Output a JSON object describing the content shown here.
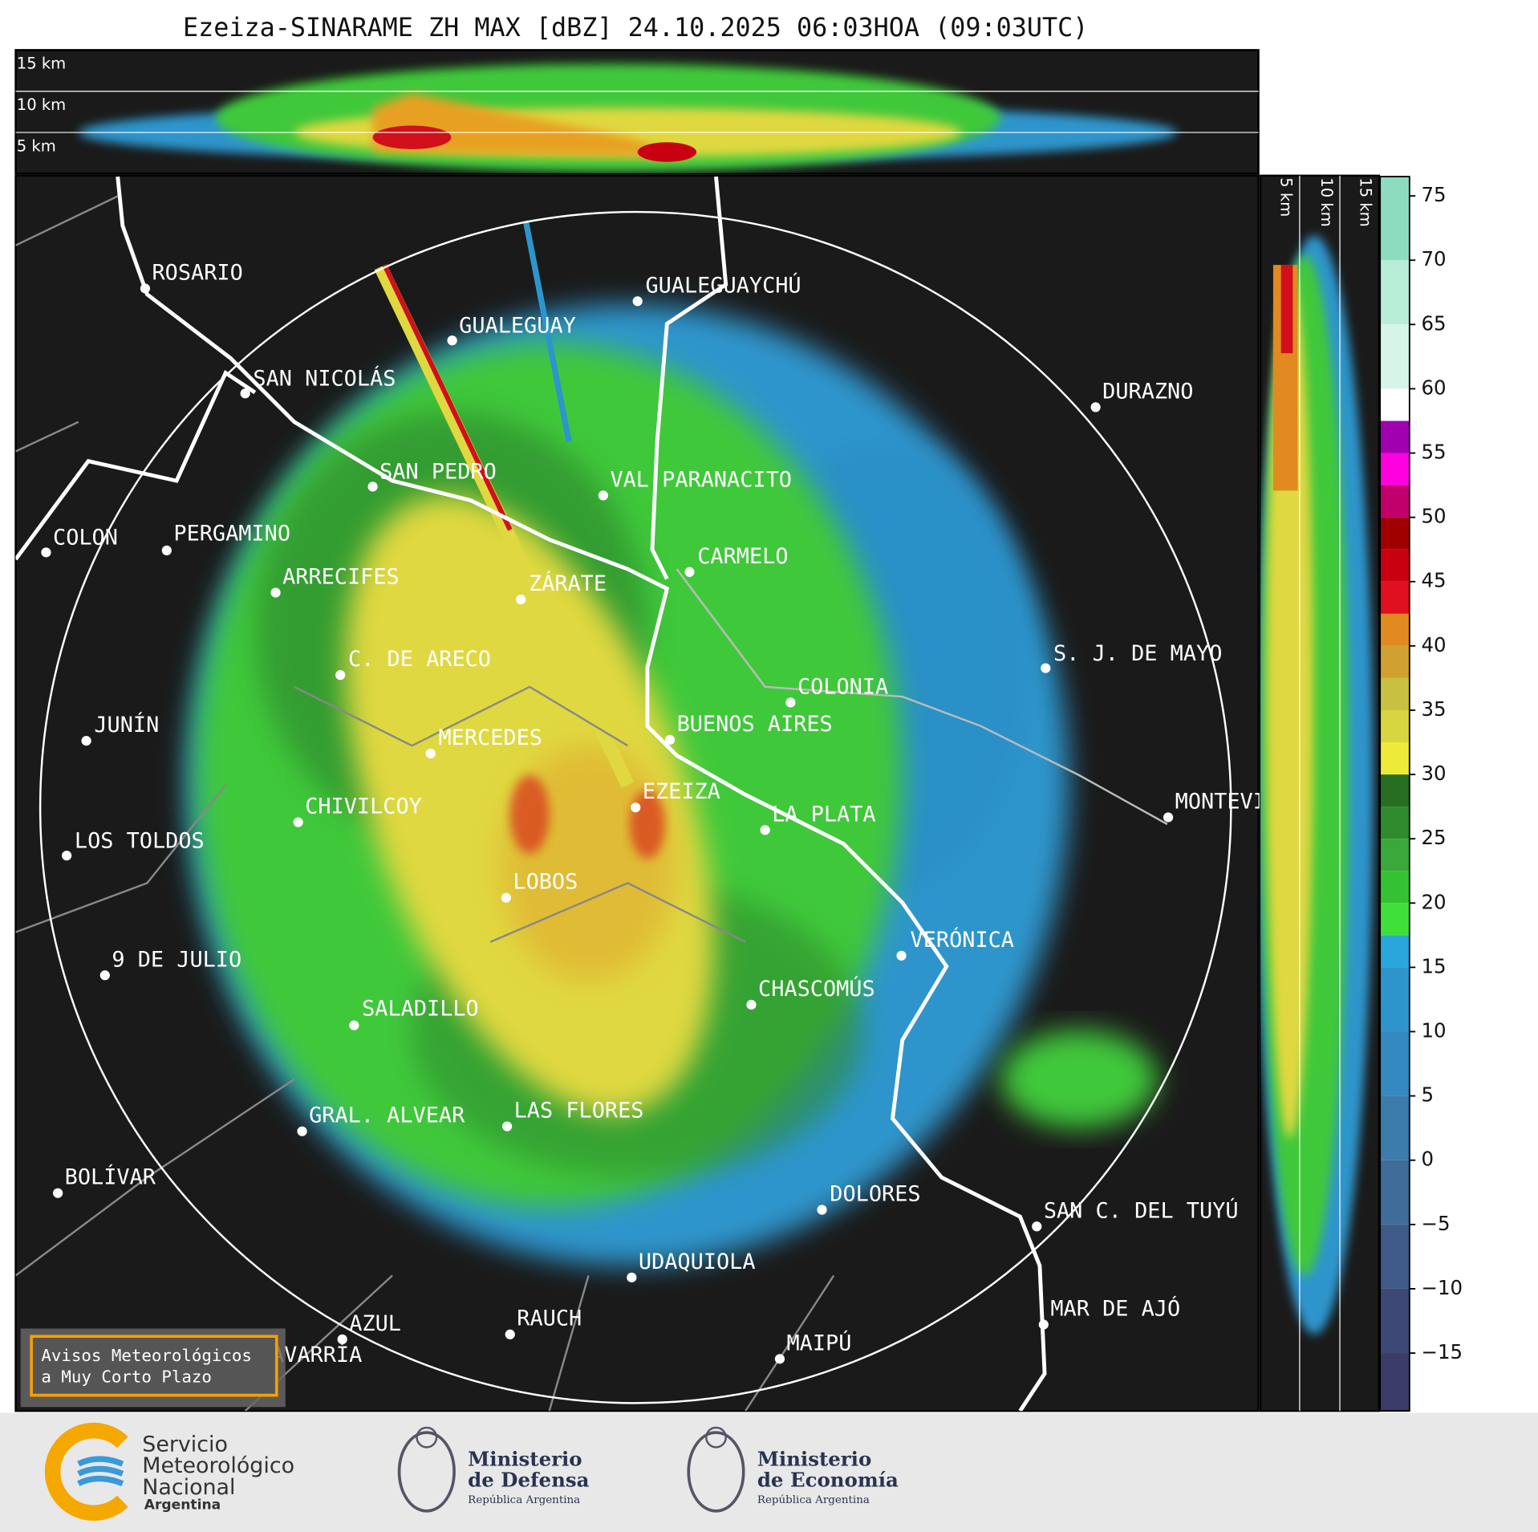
{
  "header": {
    "title": "Ezeiza-SINARAME ZH MAX [dBZ] 24.10.2025 06:03HOA (09:03UTC)"
  },
  "cross_section": {
    "top_labels": [
      "15 km",
      "10 km",
      "5 km"
    ],
    "side_labels": [
      "5 km",
      "10 km",
      "15 km"
    ]
  },
  "map": {
    "cities": [
      "ROSARIO",
      "GUALEGUAYCHÚ",
      "GUALEGUAY",
      "SAN NICOLÁS",
      "DURAZNO",
      "SAN PEDRO",
      "VAL PARANACITO",
      "COLON",
      "PERGAMINO",
      "CARMELO",
      "ARRECIFES",
      "ZÁRATE",
      "S. J. DE MAYO",
      "C. DE ARECO",
      "COLONIA",
      "JUNÍN",
      "BUENOS AIRES",
      "MERCEDES",
      "EZEIZA",
      "MONTEVIDEO",
      "CHIVILCOY",
      "LA PLATA",
      "LOS TOLDOS",
      "LOBOS",
      "VERÓNICA",
      "9 DE JULIO",
      "CHASCOMÚS",
      "SALADILLO",
      "GRAL. ALVEAR",
      "LAS FLORES",
      "BOLÍVAR",
      "DOLORES",
      "SAN C. DEL TUYÚ",
      "UDAQUIOLA",
      "MAR DE AJÓ",
      "RAUCH",
      "AZUL",
      "MAIPÚ",
      "OLAVARRÍA"
    ]
  },
  "colorbar": {
    "ylim": [
      -19.5,
      76.5
    ],
    "ticks": [
      75,
      70,
      65,
      60,
      55,
      50,
      45,
      40,
      35,
      30,
      25,
      20,
      15,
      10,
      5,
      0,
      {
        "value": -5,
        "label": "−5"
      },
      {
        "value": -10,
        "label": "−10"
      },
      {
        "value": -15,
        "label": "−15"
      }
    ],
    "bounds": [
      -19.5,
      -15,
      -10,
      -5,
      0,
      5,
      10,
      15,
      17.5,
      20,
      22.5,
      25,
      27.5,
      30,
      32.5,
      35,
      37.5,
      40,
      42.5,
      45,
      47.5,
      50,
      52.5,
      55,
      57.5,
      60,
      65,
      70,
      76.5
    ],
    "colors": [
      "#3b3c68",
      "#3d4876",
      "#3f5a88",
      "#3f6c98",
      "#3b7cad",
      "#3489c0",
      "#2e95cc",
      "#29a6dc",
      "#3fe03a",
      "#35c232",
      "#3aa83a",
      "#2e8c2e",
      "#276e22",
      "#eeea3a",
      "#d8d640",
      "#c8c040",
      "#d0a030",
      "#e08a20",
      "#e01020",
      "#c80010",
      "#a00000",
      "#c0006a",
      "#ff00e0",
      "#a000b0",
      "#ffffff",
      "#d6f5e8",
      "#b8eed8",
      "#8ddcbf"
    ]
  },
  "badge": {
    "lines": [
      "Avisos Meteorológicos",
      "a Muy Corto Plazo"
    ]
  },
  "logos": {
    "smn": [
      "Servicio",
      "Meteorológico",
      "Nacional",
      "Argentina"
    ],
    "defensa": [
      "Ministerio",
      "de Defensa",
      "República Argentina"
    ],
    "economia": [
      "Ministerio",
      "de Economía",
      "República Argentina"
    ]
  }
}
